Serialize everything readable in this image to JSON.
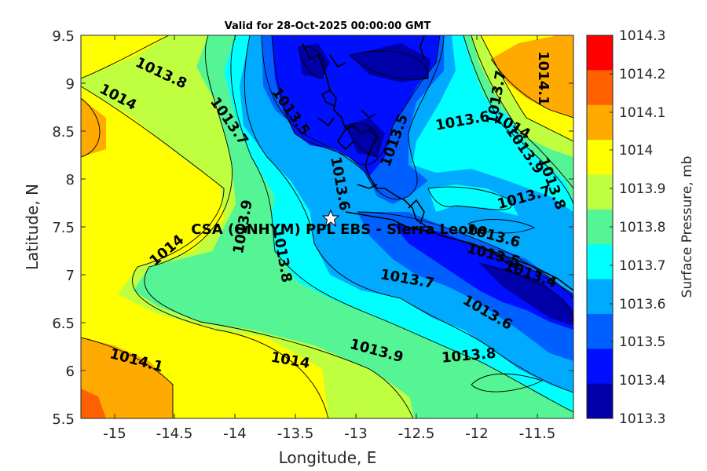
{
  "title": "Valid for 28-Oct-2025 00:00:00 GMT",
  "xlabel": "Longitude, E",
  "ylabel": "Latitude, N",
  "colorbar_label": "Surface Pressure, mb",
  "station_label": "CSA (ONHYM) PPL EBS  - Sierra Leone",
  "x_ticks": [
    "-15",
    "-14.5",
    "-14",
    "-13.5",
    "-13",
    "-12.5",
    "-12",
    "-11.5"
  ],
  "y_ticks": [
    "9.5",
    "9",
    "8.5",
    "8",
    "7.5",
    "7",
    "6.5",
    "6",
    "5.5"
  ],
  "colorbar_ticks": [
    "1014.3",
    "1014.2",
    "1014.1",
    "1014",
    "1013.9",
    "1013.8",
    "1013.7",
    "1013.6",
    "1013.5",
    "1013.4",
    "1013.3"
  ],
  "colorbar_colors": [
    "#ff0000",
    "#ff6000",
    "#ffaa00",
    "#ffff00",
    "#bfff40",
    "#55f595",
    "#00ffff",
    "#00aaff",
    "#0060ff",
    "#0010ff",
    "#0000a8"
  ],
  "contour_labels": [
    {
      "text": "1013.8"
    },
    {
      "text": "1014"
    },
    {
      "text": "1013.7"
    },
    {
      "text": "1013.5"
    },
    {
      "text": "1013.6"
    },
    {
      "text": "1013.5"
    },
    {
      "text": "1013.6"
    },
    {
      "text": "1013.7"
    },
    {
      "text": "1014.1"
    },
    {
      "text": "1014"
    },
    {
      "text": "1013.9"
    },
    {
      "text": "1013.8"
    },
    {
      "text": "1013.7"
    },
    {
      "text": "1013.9"
    },
    {
      "text": "1013.8"
    },
    {
      "text": "1014"
    },
    {
      "text": "1013.7"
    },
    {
      "text": "1013.6"
    },
    {
      "text": "1013.5"
    },
    {
      "text": "1013.4"
    },
    {
      "text": "1013.6"
    },
    {
      "text": "1013.8"
    },
    {
      "text": "1013.9"
    },
    {
      "text": "1014"
    },
    {
      "text": "1014.1"
    }
  ],
  "chart_data": {
    "type": "heatmap",
    "title": "Valid for 28-Oct-2025 00:00:00 GMT",
    "xlabel": "Longitude, E",
    "ylabel": "Latitude, N",
    "xlim": [
      -15.25,
      -11.25
    ],
    "ylim": [
      5.5,
      9.5
    ],
    "colorbar_label": "Surface Pressure, mb",
    "colorbar_range": [
      1013.3,
      1014.3
    ],
    "levels": [
      1013.3,
      1013.4,
      1013.5,
      1013.6,
      1013.7,
      1013.8,
      1013.9,
      1014.0,
      1014.1,
      1014.2,
      1014.3
    ],
    "station": {
      "name": "CSA (ONHYM) PPL EBS  - Sierra Leone",
      "lon": -13.23,
      "lat": 7.6
    },
    "contour_labels": [
      {
        "value": 1013.8,
        "lon": -14.6,
        "lat": 9.1
      },
      {
        "value": 1014.0,
        "lon": -14.95,
        "lat": 8.85
      },
      {
        "value": 1013.7,
        "lon": -14.05,
        "lat": 8.6
      },
      {
        "value": 1013.5,
        "lon": -13.55,
        "lat": 8.7
      },
      {
        "value": 1013.6,
        "lon": -13.15,
        "lat": 7.95
      },
      {
        "value": 1013.5,
        "lon": -12.7,
        "lat": 8.4
      },
      {
        "value": 1013.6,
        "lon": -12.15,
        "lat": 8.6
      },
      {
        "value": 1013.7,
        "lon": -11.87,
        "lat": 8.85
      },
      {
        "value": 1014.1,
        "lon": -11.5,
        "lat": 9.05
      },
      {
        "value": 1014.0,
        "lon": -11.75,
        "lat": 8.55
      },
      {
        "value": 1013.9,
        "lon": -11.65,
        "lat": 8.3
      },
      {
        "value": 1013.8,
        "lon": -11.43,
        "lat": 7.95
      },
      {
        "value": 1013.7,
        "lon": -11.65,
        "lat": 7.8
      },
      {
        "value": 1013.9,
        "lon": -13.93,
        "lat": 7.5
      },
      {
        "value": 1013.8,
        "lon": -13.62,
        "lat": 7.2
      },
      {
        "value": 1014.0,
        "lon": -14.55,
        "lat": 7.25
      },
      {
        "value": 1013.7,
        "lon": -12.6,
        "lat": 6.95
      },
      {
        "value": 1013.6,
        "lon": -11.9,
        "lat": 7.4
      },
      {
        "value": 1013.5,
        "lon": -11.9,
        "lat": 7.2
      },
      {
        "value": 1013.4,
        "lon": -11.6,
        "lat": 7.0
      },
      {
        "value": 1013.6,
        "lon": -11.95,
        "lat": 6.6
      },
      {
        "value": 1013.8,
        "lon": -12.1,
        "lat": 6.15
      },
      {
        "value": 1013.9,
        "lon": -12.85,
        "lat": 6.2
      },
      {
        "value": 1014.0,
        "lon": -13.55,
        "lat": 6.1
      },
      {
        "value": 1014.1,
        "lon": -14.8,
        "lat": 6.1
      }
    ]
  }
}
